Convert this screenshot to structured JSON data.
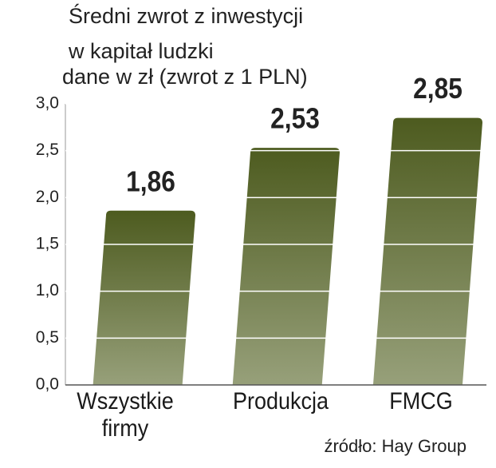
{
  "chart_data": {
    "type": "bar",
    "title": "Średni zwrot z inwestycji",
    "title_line2": "w kapitał ludzki",
    "subtitle": "dane w zł (zwrot z 1 PLN)",
    "categories": [
      "Wszystkie firmy",
      "Produkcja",
      "FMCG"
    ],
    "values": [
      1.86,
      2.53,
      2.85
    ],
    "value_labels": [
      "1,86",
      "2,53",
      "2,85"
    ],
    "color": "#56622a",
    "ylim": [
      0,
      3
    ],
    "yticks": [
      {
        "value": 0,
        "label": "0,0"
      },
      {
        "value": 0.5,
        "label": "0,5"
      },
      {
        "value": 1,
        "label": "1,0"
      },
      {
        "value": 1.5,
        "label": "1,5"
      },
      {
        "value": 2,
        "label": "2,0"
      },
      {
        "value": 2.5,
        "label": "2,5"
      },
      {
        "value": 3,
        "label": "3,0"
      }
    ],
    "grid": true,
    "source": "źródło:  Hay Group"
  }
}
